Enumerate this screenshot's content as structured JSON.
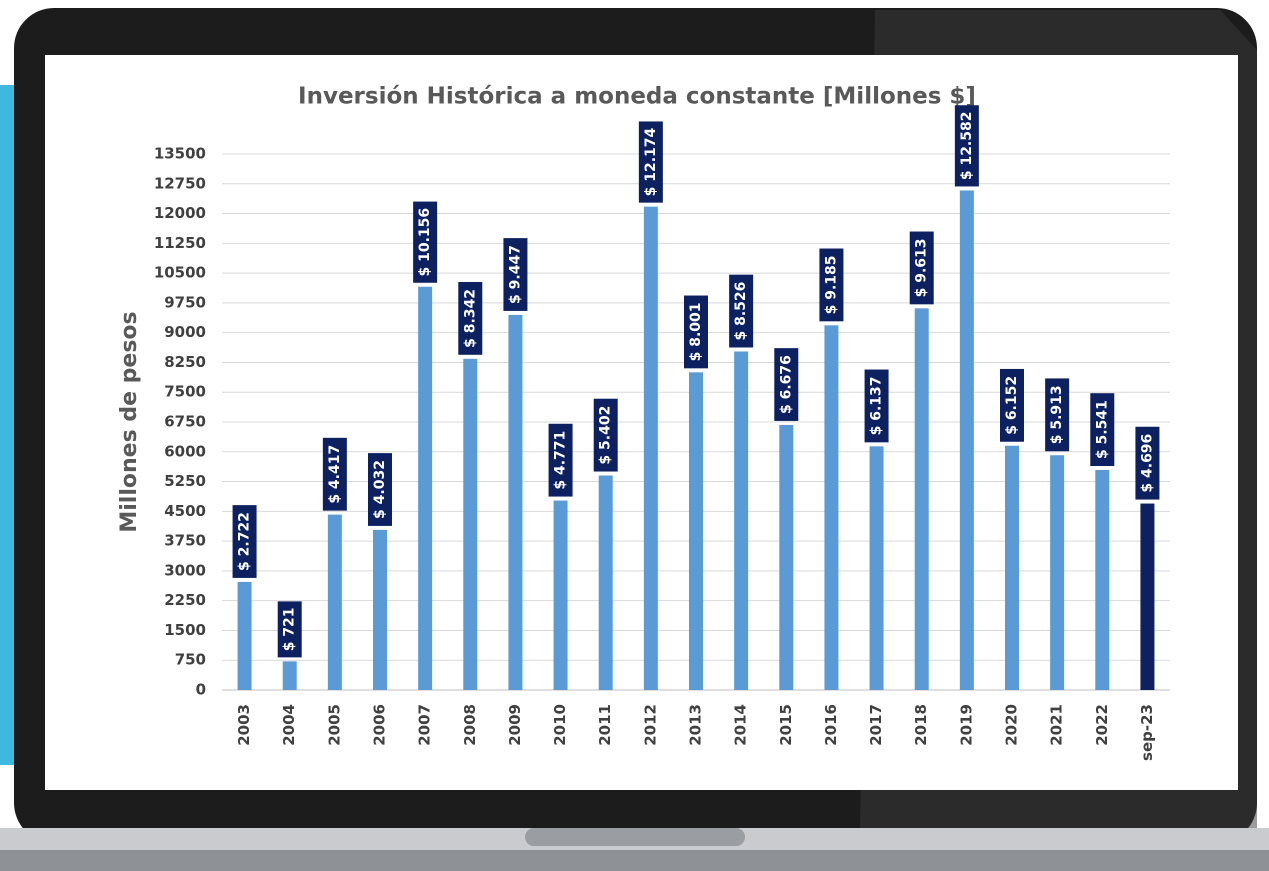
{
  "chart_data": {
    "type": "bar",
    "title": "Inversión Histórica a moneda constante [Millones $]",
    "y_label": "Millones de pesos",
    "categories": [
      "2003",
      "2004",
      "2005",
      "2006",
      "2007",
      "2008",
      "2009",
      "2010",
      "2011",
      "2012",
      "2013",
      "2014",
      "2015",
      "2016",
      "2017",
      "2018",
      "2019",
      "2020",
      "2021",
      "2022",
      "sep-23"
    ],
    "values": [
      2722,
      721,
      4417,
      4032,
      10156,
      8342,
      9447,
      4771,
      5402,
      12174,
      8001,
      8526,
      6676,
      9185,
      6137,
      9613,
      12582,
      6152,
      5913,
      5541,
      4696
    ],
    "value_labels": [
      "$ 2.722",
      "$ 721",
      "$ 4.417",
      "$ 4.032",
      "$ 10.156",
      "$ 8.342",
      "$ 9.447",
      "$ 4.771",
      "$ 5.402",
      "$ 12.174",
      "$ 8.001",
      "$ 8.526",
      "$ 6.676",
      "$ 9.185",
      "$ 6.137",
      "$ 9.613",
      "$ 12.582",
      "$ 6.152",
      "$ 5.913",
      "$ 5.541",
      "$ 4.696"
    ],
    "colors": [
      "#5b9bd5",
      "#5b9bd5",
      "#5b9bd5",
      "#5b9bd5",
      "#5b9bd5",
      "#5b9bd5",
      "#5b9bd5",
      "#5b9bd5",
      "#5b9bd5",
      "#5b9bd5",
      "#5b9bd5",
      "#5b9bd5",
      "#5b9bd5",
      "#5b9bd5",
      "#5b9bd5",
      "#5b9bd5",
      "#5b9bd5",
      "#5b9bd5",
      "#5b9bd5",
      "#5b9bd5",
      "#0d2160"
    ],
    "label_color": "#0d2160",
    "ylim": [
      0,
      13500
    ],
    "yticks": [
      0,
      750,
      1500,
      2250,
      3000,
      3750,
      4500,
      5250,
      6000,
      6750,
      7500,
      8250,
      9000,
      9750,
      10500,
      11250,
      12000,
      12750,
      13500
    ],
    "grid": true
  }
}
